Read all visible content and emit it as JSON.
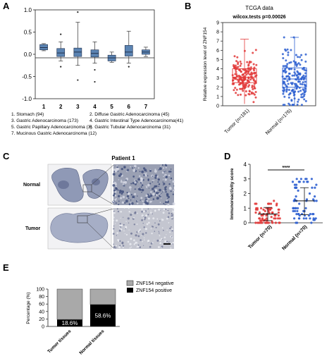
{
  "panels": [
    "A",
    "B",
    "C",
    "D",
    "E"
  ],
  "colors": {
    "box_fill": "#5b84b3",
    "red": "#e23a3a",
    "blue": "#2d5fd0",
    "gray_bar": "#a9a9a9",
    "black_bar": "#000000",
    "tissue": "#8f99b6"
  },
  "panel_a": {
    "legend": [
      "1. Stomach (94)",
      "2. Diffuse Gastric Adenocarcinoma (45)",
      "3. Gastric Adenocarcinoma (173)",
      "4. Gastric  Intestinal  Type Adenocarcinoma(41)",
      "5. Gastric Papillary Adenocarcinoma (3)",
      "6. Gastric Tubular Adenocarcinoma (31)",
      "7. Mucinous Gastric Adenocarcinoma (12)"
    ]
  },
  "panel_b": {
    "title": "TCGA data",
    "stat": "wilcox.tests p=0.00026"
  },
  "panel_c": {
    "title": "Patient 1",
    "row_labels": [
      "Normal",
      "Tumor"
    ]
  },
  "panel_d": {
    "significance": "****"
  },
  "panel_e": {
    "legend": [
      "ZNF154 negative",
      "ZNF154 positive"
    ],
    "bar_labels": [
      "18.6%",
      "58.6%"
    ]
  },
  "chart_data": [
    {
      "panel": "A",
      "type": "box",
      "categories": [
        "1",
        "2",
        "3",
        "4",
        "5",
        "6",
        "7"
      ],
      "ylim": [
        -1.0,
        1.0
      ],
      "yticks": [
        "1.0",
        "0.5",
        "0.0",
        "-0.5",
        "-1.0"
      ],
      "series": [
        {
          "category": "1",
          "min": 0.08,
          "q1": 0.1,
          "median": 0.15,
          "q3": 0.22,
          "max": 0.24,
          "outliers": []
        },
        {
          "category": "2",
          "min": -0.15,
          "q1": -0.05,
          "median": 0.03,
          "q3": 0.13,
          "max": 0.28,
          "outliers": [
            0.45,
            -0.28
          ]
        },
        {
          "category": "3",
          "min": -0.25,
          "q1": -0.05,
          "median": 0.05,
          "q3": 0.14,
          "max": 0.72,
          "outliers": [
            0.95,
            -0.58
          ]
        },
        {
          "category": "4",
          "min": -0.2,
          "q1": -0.06,
          "median": 0.02,
          "q3": 0.1,
          "max": 0.28,
          "outliers": [
            -0.35,
            -0.62
          ]
        },
        {
          "category": "5",
          "min": -0.18,
          "q1": -0.15,
          "median": -0.08,
          "q3": -0.02,
          "max": 0.05,
          "outliers": []
        },
        {
          "category": "6",
          "min": -0.2,
          "q1": -0.04,
          "median": 0.05,
          "q3": 0.2,
          "max": 0.52,
          "outliers": [
            -0.28
          ]
        },
        {
          "category": "7",
          "min": -0.05,
          "q1": 0.0,
          "median": 0.05,
          "q3": 0.1,
          "max": 0.16,
          "outliers": []
        }
      ]
    },
    {
      "panel": "B",
      "type": "scatter",
      "categories": [
        "Tumor (n=181)",
        "Normal (n=176)"
      ],
      "ylabel": "Relative expression level of ZNF154",
      "ylim": [
        0,
        9
      ],
      "yticks": [
        0,
        1,
        2,
        3,
        4,
        5,
        6,
        7,
        8,
        9
      ],
      "series": [
        {
          "name": "Tumor (n=181)",
          "median": 3.1,
          "q1": 2.5,
          "q3": 4.0,
          "min": 0.2,
          "max": 7.2,
          "n": 181
        },
        {
          "name": "Normal (n=176)",
          "median": 2.9,
          "q1": 2.0,
          "q3": 4.1,
          "min": 0.1,
          "max": 7.4,
          "n": 176
        }
      ]
    },
    {
      "panel": "D",
      "type": "scatter",
      "categories": [
        "Tumor (n=70)",
        "Normal (n=70)"
      ],
      "ylabel": "Immunoreactivity score",
      "ylim": [
        0,
        4
      ],
      "yticks": [
        0,
        1,
        2,
        3,
        4
      ],
      "series": [
        {
          "name": "Tumor (n=70)",
          "mean": 0.6,
          "sd_low": 0.15,
          "sd_high": 1.05,
          "n": 70
        },
        {
          "name": "Normal (n=70)",
          "mean": 1.5,
          "sd_low": 0.55,
          "sd_high": 2.4,
          "n": 70
        }
      ]
    },
    {
      "panel": "E",
      "type": "bar",
      "categories": [
        "Tumor tissues",
        "Normal tissues"
      ],
      "ylabel": "Percentage (%)",
      "ylim": [
        0,
        100
      ],
      "yticks": [
        0,
        20,
        40,
        60,
        80,
        100
      ],
      "series": [
        {
          "name": "ZNF154 negative",
          "values": [
            81.4,
            41.4
          ]
        },
        {
          "name": "ZNF154 positive",
          "values": [
            18.6,
            58.6
          ]
        }
      ]
    }
  ]
}
